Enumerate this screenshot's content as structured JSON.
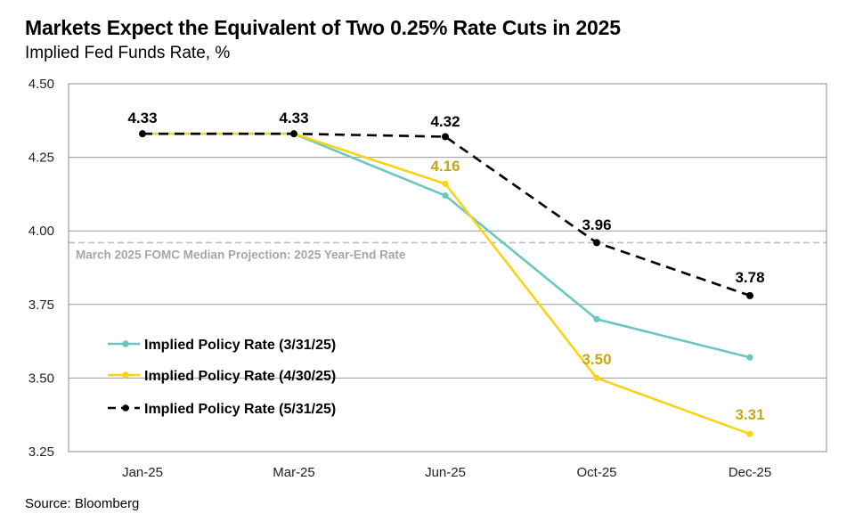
{
  "title": "Markets Expect the Equivalent of Two 0.25% Rate Cuts in 2025",
  "subtitle": "Implied Fed Funds Rate, %",
  "source": "Source: Bloomberg",
  "chart_data": {
    "type": "line",
    "categories": [
      "Jan-25",
      "Mar-25",
      "Jun-25",
      "Oct-25",
      "Dec-25"
    ],
    "ylim": [
      3.25,
      4.5
    ],
    "yticks": [
      "4.50",
      "4.25",
      "4.00",
      "3.75",
      "3.50",
      "3.25"
    ],
    "xlabel": "",
    "ylabel": "",
    "grid": true,
    "legend_position": "lower-left",
    "reference_line": {
      "value": 3.96,
      "label": "March 2025 FOMC Median Projection: 2025 Year-End Rate",
      "color": "#bfbfbf"
    },
    "series": [
      {
        "name": "Implied Policy Rate (3/31/25)",
        "values": [
          4.33,
          4.33,
          4.12,
          3.7,
          3.57
        ],
        "color": "#6cc5c2",
        "style": "solid",
        "labels": [
          "",
          "",
          "",
          "",
          ""
        ]
      },
      {
        "name": "Implied Policy Rate (4/30/25)",
        "values": [
          4.33,
          4.33,
          4.16,
          3.5,
          3.31
        ],
        "color": "#f7d417",
        "label_color": "#c9a516",
        "style": "solid",
        "labels": [
          "",
          "",
          "4.16",
          "3.50",
          "3.31"
        ]
      },
      {
        "name": "Implied Policy Rate (5/31/25)",
        "values": [
          4.33,
          4.33,
          4.32,
          3.96,
          3.78
        ],
        "color": "#000000",
        "style": "dashed",
        "labels": [
          "4.33",
          "4.33",
          "4.32",
          "3.96",
          "3.78"
        ]
      }
    ]
  }
}
